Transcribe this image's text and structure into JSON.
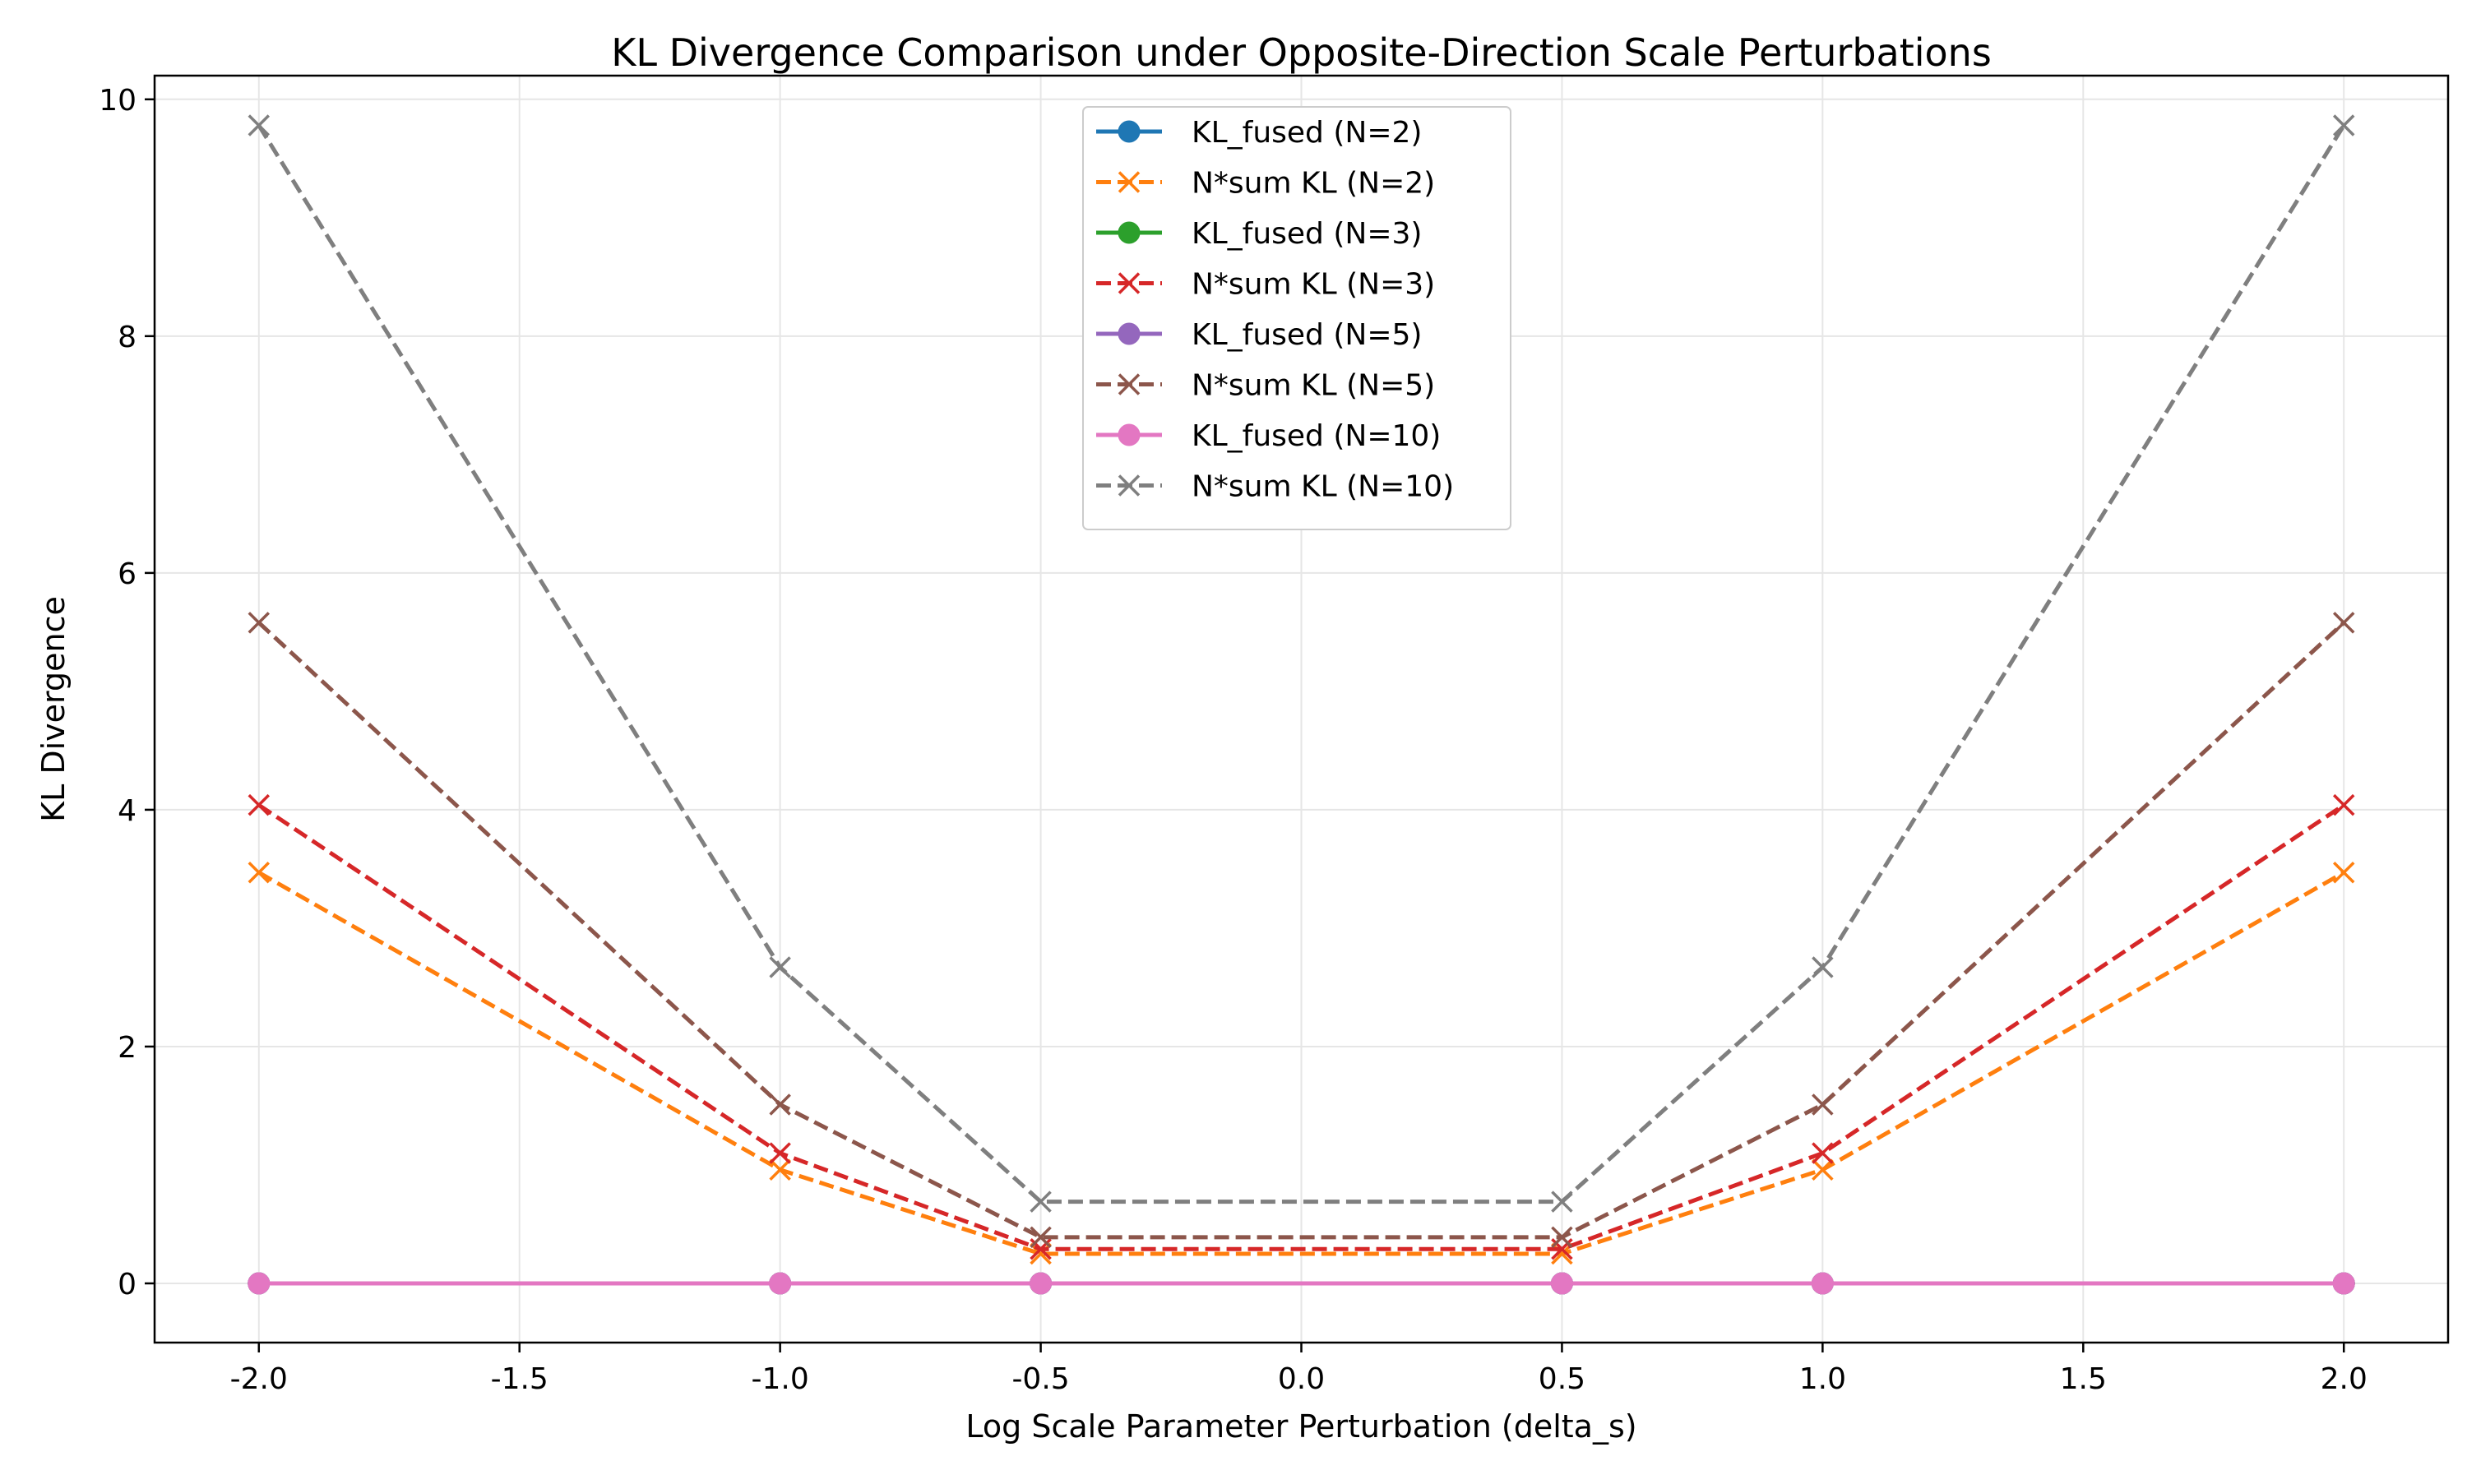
{
  "chart_data": {
    "type": "line",
    "title": "KL Divergence Comparison under Opposite-Direction Scale Perturbations",
    "xlabel": "Log Scale Parameter Perturbation (delta_s)",
    "ylabel": "KL Divergence",
    "x": [
      -2.0,
      -1.0,
      -0.5,
      0.5,
      1.0,
      2.0
    ],
    "xlim": [
      -2.2,
      2.2
    ],
    "ylim": [
      -0.5,
      10.2
    ],
    "xticks": [
      -2.0,
      -1.5,
      -1.0,
      -0.5,
      0.0,
      0.5,
      1.0,
      1.5,
      2.0
    ],
    "xtick_labels": [
      "-2.0",
      "-1.5",
      "-1.0",
      "-0.5",
      "0.0",
      "0.5",
      "1.0",
      "1.5",
      "2.0"
    ],
    "yticks": [
      0,
      2,
      4,
      6,
      8,
      10
    ],
    "ytick_labels": [
      "0",
      "2",
      "4",
      "6",
      "8",
      "10"
    ],
    "grid": true,
    "legend_position": "upper-center",
    "series": [
      {
        "name": "KL_fused (N=2)",
        "color": "#1f77b4",
        "style": "solid",
        "marker": "circle",
        "values": [
          0,
          0,
          0,
          0,
          0,
          0
        ]
      },
      {
        "name": "N*sum KL (N=2)",
        "color": "#ff7f0e",
        "style": "dashed",
        "marker": "x",
        "values": [
          3.47,
          0.96,
          0.25,
          0.25,
          0.96,
          3.47
        ]
      },
      {
        "name": "KL_fused (N=3)",
        "color": "#2ca02c",
        "style": "solid",
        "marker": "circle",
        "values": [
          0,
          0,
          0,
          0,
          0,
          0
        ]
      },
      {
        "name": "N*sum KL (N=3)",
        "color": "#d62728",
        "style": "dashed",
        "marker": "x",
        "values": [
          4.04,
          1.1,
          0.29,
          0.29,
          1.1,
          4.04
        ]
      },
      {
        "name": "KL_fused (N=5)",
        "color": "#9467bd",
        "style": "solid",
        "marker": "circle",
        "values": [
          0,
          0,
          0,
          0,
          0,
          0
        ]
      },
      {
        "name": "N*sum KL (N=5)",
        "color": "#8c564b",
        "style": "dashed",
        "marker": "x",
        "values": [
          5.58,
          1.51,
          0.39,
          0.39,
          1.51,
          5.58
        ]
      },
      {
        "name": "KL_fused (N=10)",
        "color": "#e377c2",
        "style": "solid",
        "marker": "circle",
        "values": [
          0,
          0,
          0,
          0,
          0,
          0
        ]
      },
      {
        "name": "N*sum KL (N=10)",
        "color": "#7f7f7f",
        "style": "dashed",
        "marker": "x",
        "values": [
          9.78,
          2.67,
          0.69,
          0.69,
          2.67,
          9.78
        ]
      }
    ]
  }
}
